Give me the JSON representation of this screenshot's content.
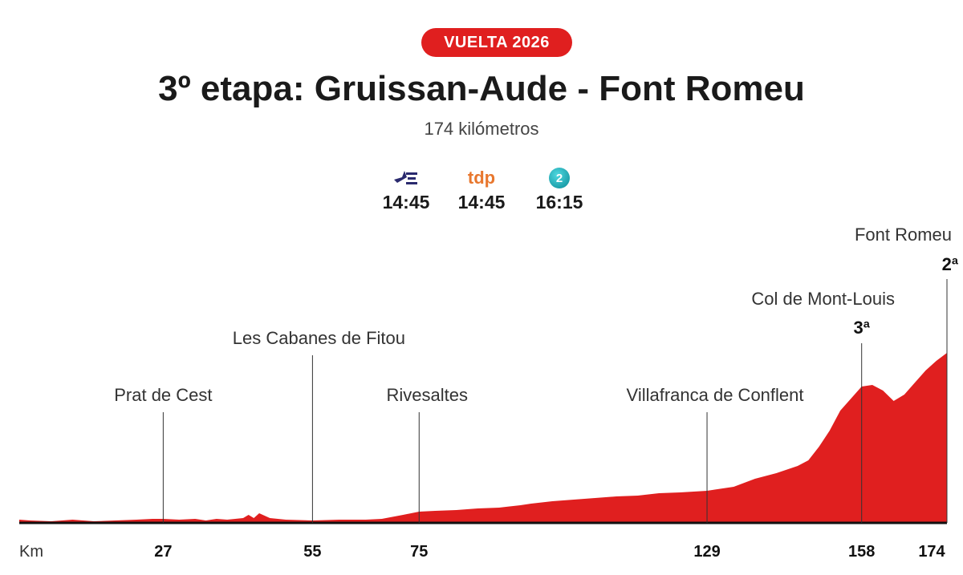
{
  "badge": "VUELTA 2026",
  "title": "3º etapa: Gruissan-Aude - Font Romeu",
  "subtitle": "174 kilómetros",
  "broadcasters": [
    {
      "logo": "eurosport-logo",
      "logo_text": "",
      "time": "14:45"
    },
    {
      "logo": "tdp-logo",
      "logo_text": "tdp",
      "time": "14:45"
    },
    {
      "logo": "la2-logo",
      "logo_text": "2",
      "time": "16:15"
    }
  ],
  "colors": {
    "accent": "#e01f1f",
    "profile": "#e01f1f"
  },
  "chart_data": {
    "type": "area",
    "title": "3º etapa: Gruissan-Aude - Font Romeu",
    "xlabel": "Km",
    "ylabel": "",
    "x_ticks": [
      "27",
      "55",
      "75",
      "129",
      "158",
      "174"
    ],
    "xlim": [
      0,
      174
    ],
    "elevation_profile": [
      [
        0,
        4
      ],
      [
        2,
        3
      ],
      [
        6,
        2
      ],
      [
        10,
        4
      ],
      [
        14,
        2
      ],
      [
        18,
        3
      ],
      [
        22,
        4
      ],
      [
        25,
        5
      ],
      [
        27,
        5
      ],
      [
        30,
        4
      ],
      [
        33,
        5
      ],
      [
        35,
        3
      ],
      [
        37,
        5
      ],
      [
        39,
        4
      ],
      [
        42,
        6
      ],
      [
        43,
        10
      ],
      [
        44,
        6
      ],
      [
        45,
        12
      ],
      [
        47,
        6
      ],
      [
        50,
        4
      ],
      [
        55,
        3
      ],
      [
        60,
        4
      ],
      [
        65,
        4
      ],
      [
        68,
        5
      ],
      [
        72,
        10
      ],
      [
        75,
        14
      ],
      [
        78,
        15
      ],
      [
        82,
        16
      ],
      [
        86,
        18
      ],
      [
        90,
        19
      ],
      [
        94,
        22
      ],
      [
        96,
        24
      ],
      [
        100,
        27
      ],
      [
        104,
        29
      ],
      [
        108,
        31
      ],
      [
        112,
        33
      ],
      [
        116,
        34
      ],
      [
        120,
        37
      ],
      [
        124,
        38
      ],
      [
        129,
        40
      ],
      [
        134,
        45
      ],
      [
        138,
        55
      ],
      [
        142,
        62
      ],
      [
        146,
        71
      ],
      [
        148,
        78
      ],
      [
        150,
        95
      ],
      [
        152,
        115
      ],
      [
        154,
        140
      ],
      [
        156,
        155
      ],
      [
        158,
        170
      ],
      [
        160,
        172
      ],
      [
        162,
        165
      ],
      [
        164,
        152
      ],
      [
        166,
        160
      ],
      [
        168,
        175
      ],
      [
        170,
        190
      ],
      [
        172,
        202
      ],
      [
        174,
        212
      ]
    ],
    "places": [
      {
        "name": "Prat de Cest",
        "km": 27,
        "category": ""
      },
      {
        "name": "Les Cabanes de Fitou",
        "km": 55,
        "category": ""
      },
      {
        "name": "Rivesaltes",
        "km": 75,
        "category": ""
      },
      {
        "name": "Villafranca de Conflent",
        "km": 129,
        "category": ""
      },
      {
        "name": "Col de Mont-Louis",
        "km": 158,
        "category": "3ª"
      },
      {
        "name": "Font Romeu",
        "km": 174,
        "category": "2ª"
      }
    ],
    "grid": false
  }
}
